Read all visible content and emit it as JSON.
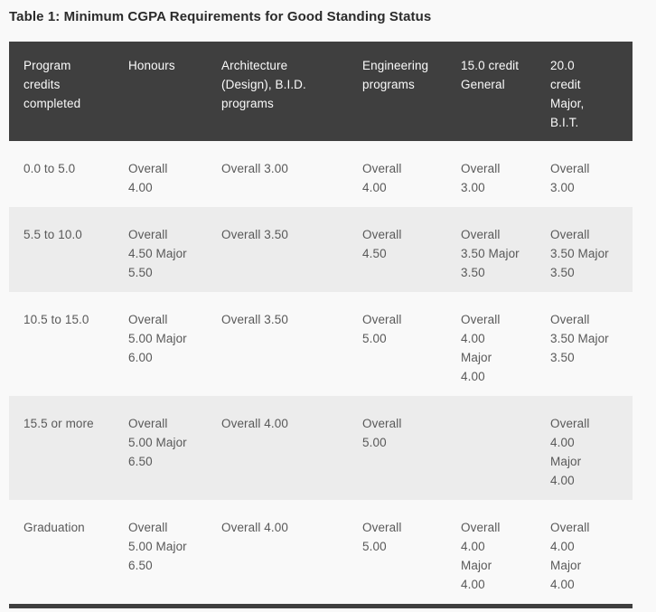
{
  "title": "Table 1: Minimum CGPA Requirements for Good Standing Status",
  "table": {
    "columns": [
      "Program\ncredits\ncompleted",
      "Honours",
      "Architecture\n(Design), B.I.D.\nprograms",
      "Engineering\nprograms",
      "15.0 credit\nGeneral",
      "20.0\ncredit\nMajor,\nB.I.T."
    ],
    "rows": [
      [
        "0.0 to 5.0",
        "Overall\n4.00",
        "Overall 3.00",
        "Overall\n4.00",
        "Overall\n3.00",
        "Overall\n3.00"
      ],
      [
        "5.5 to 10.0",
        "Overall\n4.50 Major\n5.50",
        "Overall 3.50",
        "Overall\n4.50",
        "Overall\n3.50 Major\n3.50",
        "Overall\n3.50 Major\n3.50"
      ],
      [
        "10.5 to 15.0",
        "Overall\n5.00 Major\n6.00",
        "Overall 3.50",
        "Overall\n5.00",
        "Overall\n4.00\nMajor\n4.00",
        "Overall\n3.50 Major\n3.50"
      ],
      [
        "15.5 or more",
        "Overall\n5.00 Major\n6.50",
        "Overall 4.00",
        "Overall\n5.00",
        "",
        "Overall\n4.00\nMajor\n4.00"
      ],
      [
        "Graduation",
        "Overall\n5.00 Major\n6.50",
        "Overall 4.00",
        "Overall\n5.00",
        "Overall\n4.00\nMajor\n4.00",
        "Overall\n4.00\nMajor\n4.00"
      ]
    ]
  },
  "colors": {
    "page_bg": "#f9f9f9",
    "header_bg": "#3f3f3f",
    "header_text": "#fafafa",
    "row_stripe": "#ececec",
    "body_text": "#595959",
    "title_text": "#2b2b2b"
  }
}
